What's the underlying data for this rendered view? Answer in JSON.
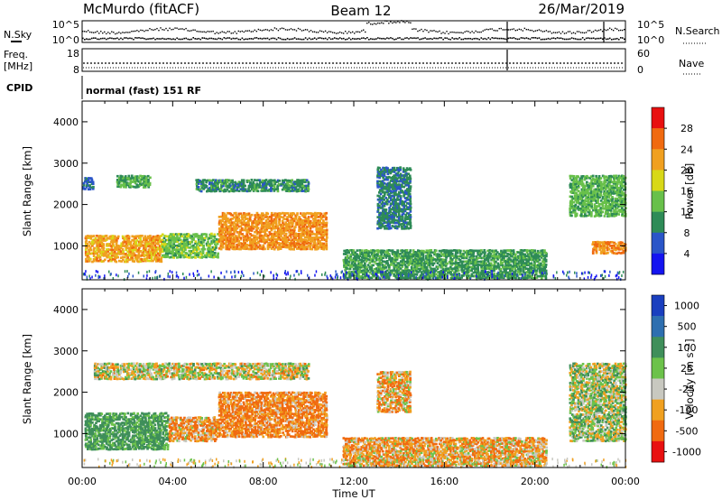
{
  "header": {
    "station": "McMurdo (fitACF)",
    "beam": "Beam 12",
    "date": "26/Mar/2019"
  },
  "noise_panel": {
    "left_label": "N.Sky",
    "right_label": "N.Search",
    "left_ticks": [
      "10^5",
      "10^0"
    ],
    "right_ticks": [
      "10^5",
      "10^0"
    ]
  },
  "freq_panel": {
    "left_label_line1": "Freq.",
    "left_label_line2": "[MHz]",
    "right_label": "Nave",
    "left_ticks": [
      "18",
      "8"
    ],
    "right_ticks": [
      "60",
      "0"
    ]
  },
  "cpid": {
    "label": "CPID",
    "mode": "normal (fast) 151 RF"
  },
  "xaxis": {
    "label": "Time UT",
    "ticks": [
      "00:00",
      "04:00",
      "08:00",
      "12:00",
      "16:00",
      "20:00",
      "00:00"
    ]
  },
  "chart_data": [
    {
      "type": "heatmap",
      "title": "",
      "xlabel": "Time UT",
      "ylabel": "Slant Range [km]",
      "ylim": [
        180,
        4500
      ],
      "y_ticks": [
        "1000",
        "2000",
        "3000",
        "4000"
      ],
      "colorbar_label": "Power [dB]",
      "colorbar_ticks": [
        "4",
        "8",
        "12",
        "16",
        "20",
        "24",
        "28"
      ],
      "colorbar_range": [
        0,
        32
      ],
      "colors": [
        "#1414f0",
        "#2a55c8",
        "#2e8b57",
        "#68c04a",
        "#d8d818",
        "#f0a020",
        "#f06a10",
        "#e81010"
      ],
      "regions": [
        {
          "t": [
            0.1,
            3.5
          ],
          "r": [
            600,
            1250
          ],
          "value": 22
        },
        {
          "t": [
            3.5,
            6.0
          ],
          "r": [
            700,
            1300
          ],
          "value": 14
        },
        {
          "t": [
            6.0,
            10.8
          ],
          "r": [
            900,
            1800
          ],
          "value": 23
        },
        {
          "t": [
            0.0,
            0.5
          ],
          "r": [
            2350,
            2650
          ],
          "value": 8
        },
        {
          "t": [
            1.5,
            3.0
          ],
          "r": [
            2400,
            2700
          ],
          "value": 12
        },
        {
          "t": [
            5.0,
            10.0
          ],
          "r": [
            2300,
            2600
          ],
          "value": 10
        },
        {
          "t": [
            13.0,
            14.5
          ],
          "r": [
            1400,
            2900
          ],
          "value": 9
        },
        {
          "t": [
            11.5,
            20.5
          ],
          "r": [
            200,
            900
          ],
          "value": 11
        },
        {
          "t": [
            21.5,
            24.0
          ],
          "r": [
            1700,
            2700
          ],
          "value": 13
        },
        {
          "t": [
            22.5,
            24.0
          ],
          "r": [
            800,
            1100
          ],
          "value": 24
        }
      ]
    },
    {
      "type": "heatmap",
      "title": "",
      "xlabel": "Time UT",
      "ylabel": "Slant Range [km]",
      "ylim": [
        180,
        4500
      ],
      "y_ticks": [
        "1000",
        "2000",
        "3000",
        "4000"
      ],
      "colorbar_label": "Velocity [m s⁻¹]",
      "colorbar_ticks": [
        "1000",
        "500",
        "100",
        "25",
        "-25",
        "-100",
        "-500",
        "-1000"
      ],
      "colors": [
        "#1a3fbf",
        "#2e6fb0",
        "#3f8f5a",
        "#6cc24a",
        "#c8c8c0",
        "#f0a020",
        "#f06a10",
        "#e81010"
      ],
      "regions": [
        {
          "t": [
            0.1,
            3.8
          ],
          "r": [
            600,
            1500
          ],
          "value": 150
        },
        {
          "t": [
            3.8,
            6.0
          ],
          "r": [
            800,
            1400
          ],
          "value": -80
        },
        {
          "t": [
            6.0,
            10.8
          ],
          "r": [
            900,
            2000
          ],
          "value": -120
        },
        {
          "t": [
            0.5,
            10.0
          ],
          "r": [
            2300,
            2700
          ],
          "value": 0
        },
        {
          "t": [
            13.0,
            14.5
          ],
          "r": [
            1500,
            2500
          ],
          "value": -60
        },
        {
          "t": [
            11.5,
            20.5
          ],
          "r": [
            200,
            900
          ],
          "value": -70
        },
        {
          "t": [
            21.5,
            24.0
          ],
          "r": [
            800,
            2700
          ],
          "value": 40
        }
      ]
    }
  ]
}
